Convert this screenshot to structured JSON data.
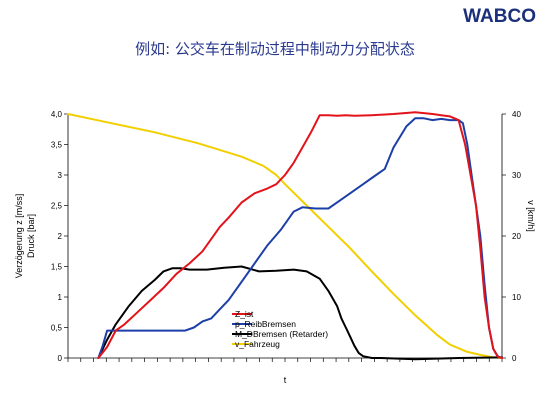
{
  "header": {
    "logo_text": "WABCO",
    "title": "例如: 公交车在制动过程中制动力分配状态"
  },
  "chart_data": {
    "type": "line",
    "title": "例如: 公交车在制动过程中制动力分配状态",
    "xlabel": "t",
    "ylabel_left_lines": [
      "Verzögerung z [m/ss]",
      "Druck  [bar]"
    ],
    "ylabel_right": "v [km/h]",
    "xlim": [
      0,
      100
    ],
    "ylim_left": [
      0,
      4
    ],
    "ylim_right": [
      0,
      40
    ],
    "yticks_left": [
      "0",
      "0,5",
      "1",
      "1,5",
      "2",
      "2,5",
      "3",
      "3,5",
      "4,0"
    ],
    "yticks_left_values": [
      0,
      0.5,
      1,
      1.5,
      2,
      2.5,
      3,
      3.5,
      4
    ],
    "yticks_right": [
      "0",
      "10",
      "20",
      "30",
      "40"
    ],
    "yticks_right_values": [
      0,
      10,
      20,
      30,
      40
    ],
    "grid": false,
    "legend_position": "center-bottom",
    "series": [
      {
        "name": "Z_ist",
        "color": "#e3131b",
        "axis": "left",
        "x": [
          7,
          9,
          11,
          13,
          16,
          19,
          22,
          25,
          28,
          31,
          33,
          35,
          37,
          40,
          43,
          46,
          48,
          50,
          52,
          54,
          56,
          58,
          60,
          62,
          64,
          66,
          70,
          75,
          80,
          84,
          86,
          88,
          90,
          91.5,
          92.5,
          94,
          95,
          96,
          97,
          98,
          99,
          100
        ],
        "y": [
          0,
          0.18,
          0.45,
          0.55,
          0.75,
          0.95,
          1.15,
          1.38,
          1.55,
          1.75,
          1.95,
          2.15,
          2.3,
          2.55,
          2.7,
          2.78,
          2.85,
          3.0,
          3.2,
          3.45,
          3.7,
          3.98,
          3.98,
          3.97,
          3.98,
          3.97,
          3.98,
          4.0,
          4.03,
          4.0,
          3.98,
          3.96,
          3.9,
          3.5,
          3.1,
          2.5,
          1.8,
          1.0,
          0.5,
          0.15,
          0.02,
          0
        ]
      },
      {
        "name": "p_ReibBremsen",
        "color": "#1c3fa8",
        "axis": "left",
        "x": [
          7,
          8,
          9,
          12,
          16,
          20,
          24,
          27,
          29,
          31,
          33,
          35,
          37,
          40,
          43,
          46,
          49,
          52,
          54,
          57,
          60,
          63,
          66,
          68,
          70,
          73,
          75,
          78,
          80,
          82,
          84,
          86,
          88,
          90,
          91,
          92,
          93,
          94,
          95,
          96,
          97,
          98,
          99,
          100
        ],
        "y": [
          0,
          0.2,
          0.45,
          0.45,
          0.45,
          0.45,
          0.45,
          0.45,
          0.5,
          0.6,
          0.65,
          0.8,
          0.95,
          1.25,
          1.55,
          1.85,
          2.1,
          2.4,
          2.47,
          2.45,
          2.45,
          2.6,
          2.75,
          2.85,
          2.95,
          3.1,
          3.45,
          3.8,
          3.93,
          3.93,
          3.9,
          3.92,
          3.9,
          3.9,
          3.85,
          3.5,
          3.0,
          2.5,
          2.0,
          1.2,
          0.5,
          0.15,
          0.03,
          0
        ]
      },
      {
        "name": "M_DBremsen (Retarder)",
        "color": "#000000",
        "axis": "left",
        "x": [
          7,
          9,
          11,
          14,
          17,
          20,
          22,
          24,
          26,
          28,
          32,
          36,
          40,
          44,
          48,
          52,
          55,
          58,
          60,
          62,
          63,
          64,
          65,
          66,
          67,
          68,
          70,
          72,
          80,
          90,
          100
        ],
        "y": [
          0,
          0.3,
          0.55,
          0.85,
          1.1,
          1.28,
          1.42,
          1.47,
          1.47,
          1.45,
          1.45,
          1.48,
          1.5,
          1.42,
          1.43,
          1.45,
          1.42,
          1.3,
          1.1,
          0.85,
          0.65,
          0.5,
          0.35,
          0.2,
          0.08,
          0.03,
          0,
          0,
          -0.02,
          0,
          0.01
        ]
      },
      {
        "name": "v_Fahrzeug",
        "color": "#f2cf00",
        "axis": "right",
        "x": [
          0,
          10,
          20,
          30,
          40,
          45,
          48,
          50,
          55,
          60,
          65,
          70,
          75,
          80,
          85,
          88,
          92,
          95,
          98,
          100
        ],
        "y": [
          40,
          38.5,
          37,
          35.2,
          33,
          31.5,
          30,
          28.5,
          25,
          21.5,
          18,
          14.2,
          10.5,
          7,
          3.8,
          2.2,
          1,
          0.5,
          0.1,
          0
        ]
      }
    ]
  }
}
